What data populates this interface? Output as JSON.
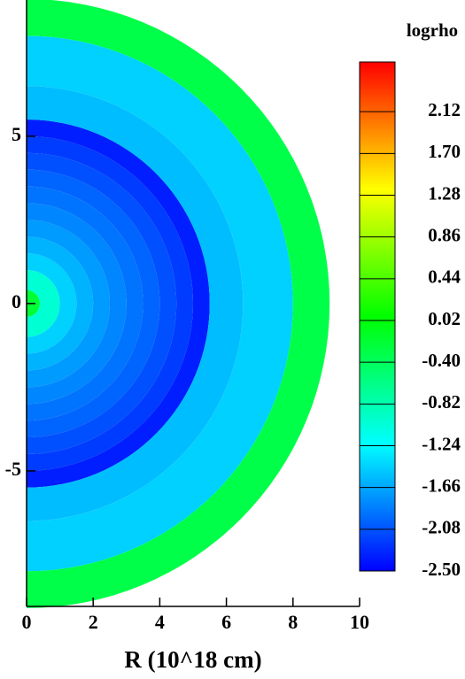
{
  "chart_data": {
    "type": "radial-map",
    "xlabel": "R (10^18 cm)",
    "colorbar_title": "logrho",
    "xlim": [
      0,
      10
    ],
    "ylim": [
      -9.05,
      9.07
    ],
    "xticks": [
      0,
      2,
      4,
      6,
      8,
      10
    ],
    "yticks": [
      -5,
      0,
      5
    ],
    "clim": [
      -2.5,
      2.62
    ],
    "cticks": [
      2.12,
      {
        "value": 1.7,
        "label": "1.70"
      },
      1.28,
      0.86,
      0.44,
      0.02,
      {
        "value": -0.4,
        "label": "-0.40"
      },
      -0.82,
      -1.24,
      -1.66,
      -2.08,
      {
        "value": -2.5,
        "label": "-2.50"
      }
    ],
    "colormap": [
      "#0000ff",
      "#00ffff",
      "#00ff00",
      "#ffff00",
      "#ff0000"
    ],
    "radii": [
      0.4,
      1,
      1.5,
      2,
      2.5,
      3,
      3.5,
      4,
      4.5,
      5,
      5.5,
      6.5,
      8,
      9.1
    ],
    "values": [
      -0.2,
      -1.0,
      -1.45,
      -1.6,
      -1.72,
      -1.82,
      -1.92,
      -2.0,
      -2.1,
      -2.2,
      -2.35,
      -1.55,
      -1.45,
      -0.3
    ]
  }
}
